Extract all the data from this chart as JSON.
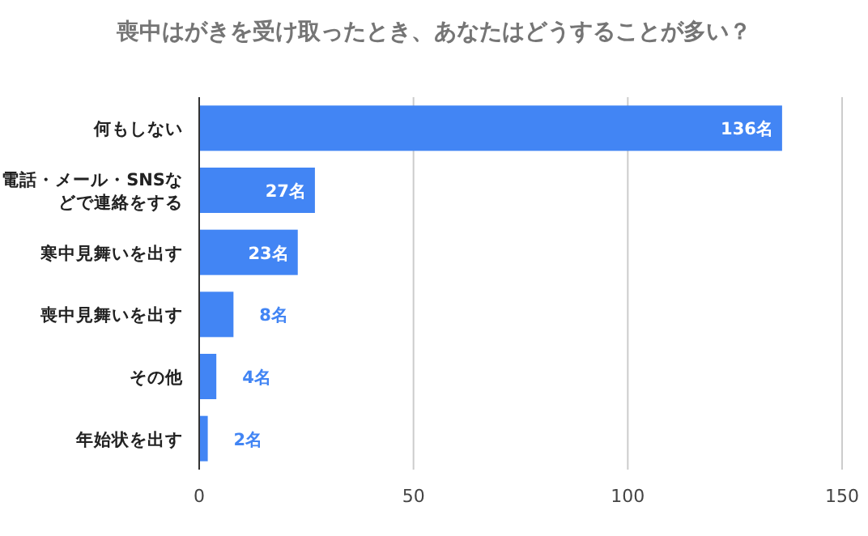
{
  "chart_data": {
    "type": "bar",
    "orientation": "horizontal",
    "title": "喪中はがきを受け取ったとき、あなたはどうすることが多い？",
    "categories": [
      "何もしない",
      "電話・メール・SNSなどで連絡をする",
      "寒中見舞いを出す",
      "喪中見舞いを出す",
      "その他",
      "年始状を出す"
    ],
    "values": [
      136,
      27,
      23,
      8,
      4,
      2
    ],
    "value_labels": [
      "136名",
      "27名",
      "23名",
      "8名",
      "4名",
      "2名"
    ],
    "color": "#4285f4",
    "xlim": [
      0,
      150
    ],
    "xticks": [
      0,
      50,
      100,
      150
    ],
    "grid": "x"
  }
}
